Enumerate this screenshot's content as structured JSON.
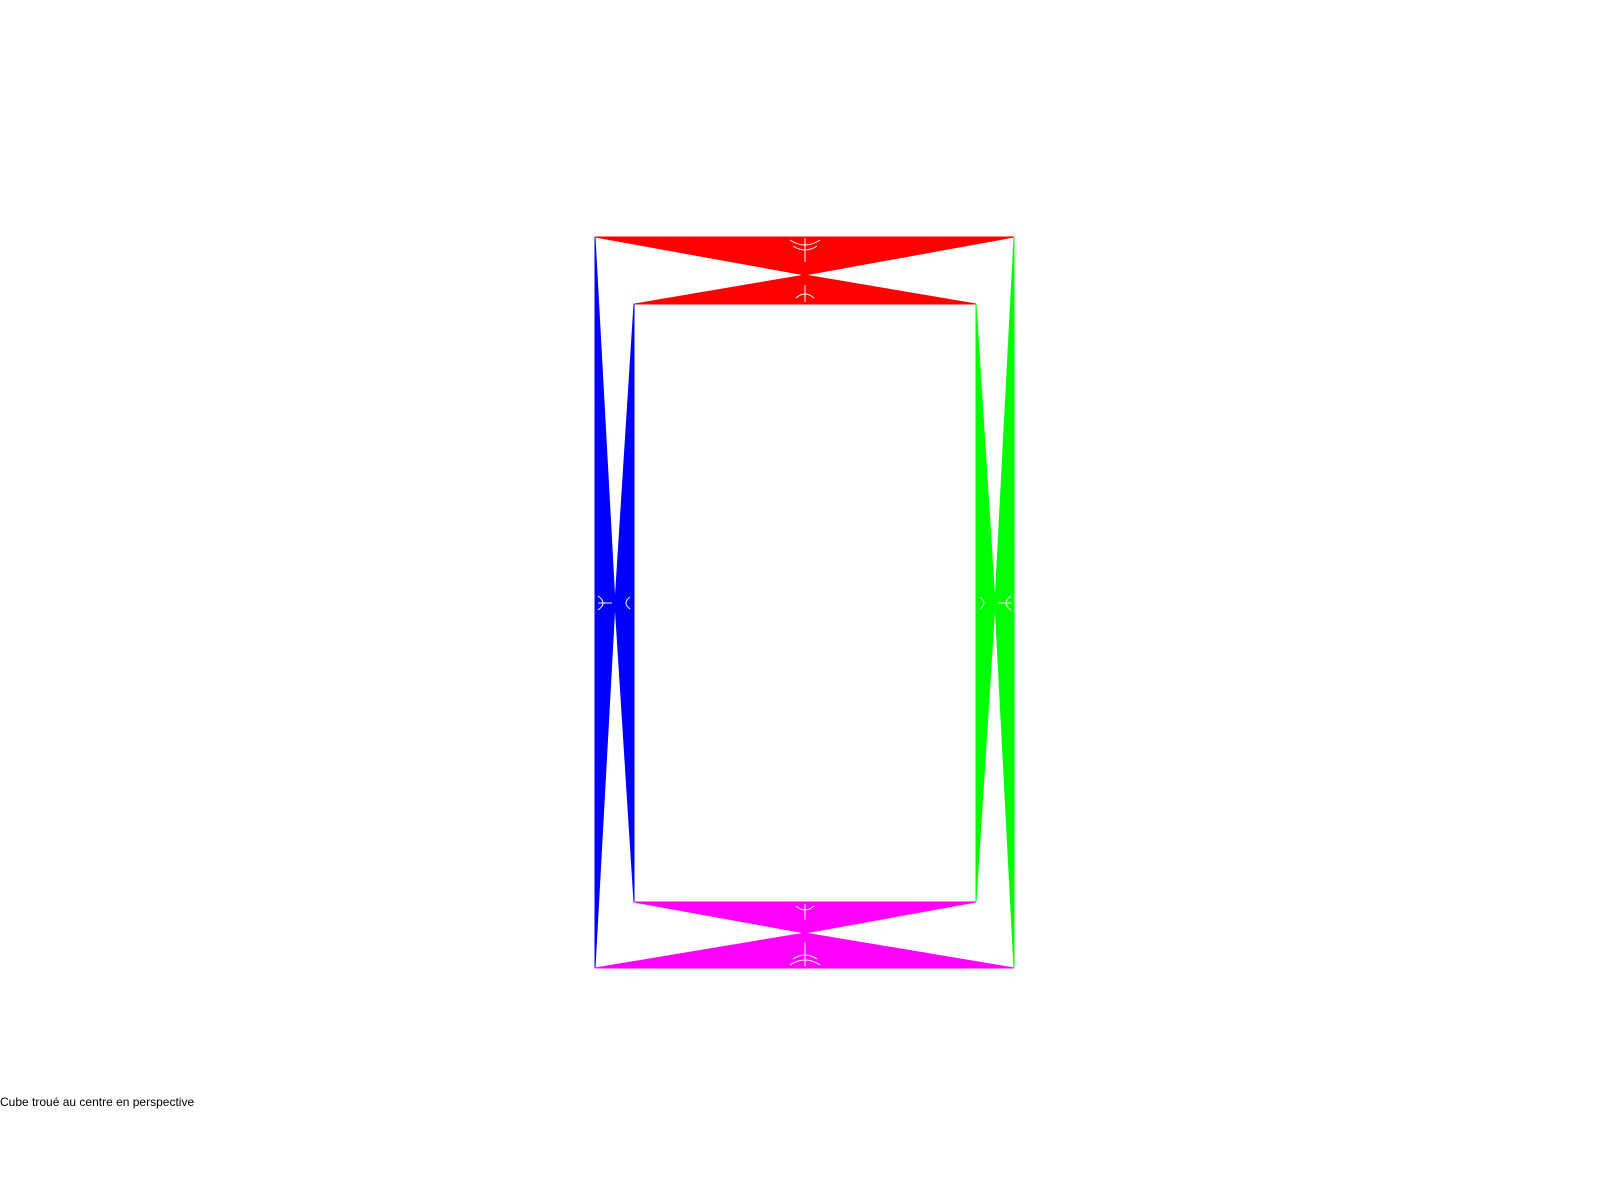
{
  "caption": "Cube troué au centre en perspective",
  "face_colors": {
    "top": "#ff0000",
    "left": "#0000ff",
    "right": "#00ff00",
    "bottom": "#ff00ff"
  }
}
